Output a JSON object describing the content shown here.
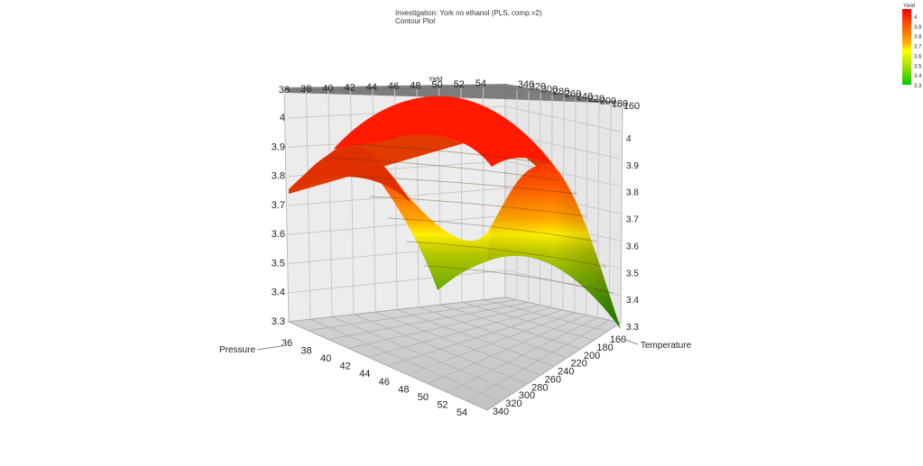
{
  "chart_data": {
    "type": "surface",
    "title": "Investigation: York no ethanol (PLS, comp.=2)",
    "subtitle": "Contour Plot",
    "zlabel": "Yield",
    "xlabel": "Pressure",
    "ylabel": "Temperature",
    "pressure_ticks": [
      "36",
      "38",
      "40",
      "42",
      "44",
      "46",
      "48",
      "50",
      "52",
      "54"
    ],
    "temperature_ticks": [
      "160",
      "180",
      "200",
      "220",
      "240",
      "260",
      "280",
      "300",
      "320",
      "340"
    ],
    "yield_ticks": [
      "3.3",
      "3.4",
      "3.5",
      "3.6",
      "3.7",
      "3.8",
      "3.9",
      "4"
    ],
    "zlim": [
      3.3,
      4.08
    ],
    "surface_peak": {
      "pressure": 46,
      "temperature": 250,
      "yield": 4.07
    },
    "surface_corners": [
      {
        "pressure": 36,
        "temperature": 160,
        "yield": 3.75
      },
      {
        "pressure": 54,
        "temperature": 160,
        "yield": 3.3
      },
      {
        "pressure": 36,
        "temperature": 340,
        "yield": 3.45
      },
      {
        "pressure": 54,
        "temperature": 340,
        "yield": 3.3
      }
    ],
    "legend": {
      "title": "Yield",
      "ticks": [
        "4",
        "3.9",
        "3.8",
        "3.7",
        "3.6",
        "3.5",
        "3.4",
        "3.3"
      ],
      "colors": [
        "#ff0000",
        "#ff5a00",
        "#ffa500",
        "#ffff00",
        "#a8e000",
        "#00cc00"
      ]
    },
    "grid": true
  }
}
